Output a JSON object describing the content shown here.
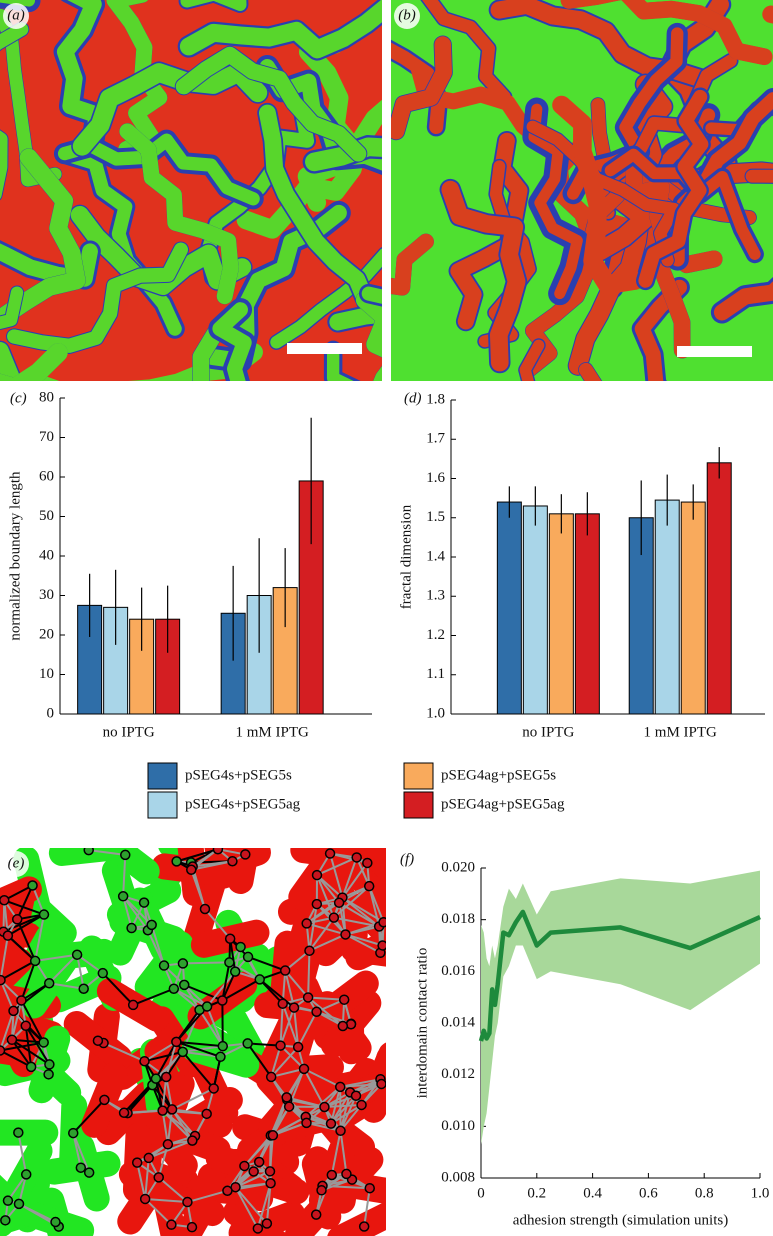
{
  "image_panels": [
    {
      "label": "(a)"
    },
    {
      "label": "(b)"
    },
    {
      "label": "(e)"
    }
  ],
  "chart_data": [
    {
      "type": "bar",
      "panel_label": "(c)",
      "ylabel": "normalized boundary length",
      "categories": [
        "no IPTG",
        "1 mM IPTG"
      ],
      "ylim": [
        0,
        80
      ],
      "yticks": [
        0,
        10,
        20,
        30,
        40,
        50,
        60,
        70,
        80
      ],
      "series": [
        {
          "name": "pSEG4s+pSEG5s",
          "color": "#2f6ea8",
          "values": [
            27.5,
            25.5
          ],
          "errors": [
            8,
            12
          ]
        },
        {
          "name": "pSEG4s+pSEG5ag",
          "color": "#a9d5e8",
          "values": [
            27,
            30
          ],
          "errors": [
            9.5,
            14.5
          ]
        },
        {
          "name": "pSEG4ag+pSEG5s",
          "color": "#f9aa5c",
          "values": [
            24,
            32
          ],
          "errors": [
            8,
            10
          ]
        },
        {
          "name": "pSEG4ag+pSEG5ag",
          "color": "#d41e22",
          "values": [
            24,
            59
          ],
          "errors": [
            8.5,
            16
          ]
        }
      ]
    },
    {
      "type": "bar",
      "panel_label": "(d)",
      "ylabel": "fractal dimension",
      "categories": [
        "no IPTG",
        "1 mM IPTG"
      ],
      "ylim": [
        1,
        1.8
      ],
      "yticks": [
        {
          "value": 1,
          "label": "1.0"
        },
        1.1,
        1.2,
        1.3,
        1.4,
        1.5,
        1.6,
        1.7,
        1.8
      ],
      "series": [
        {
          "color": "#2f6ea8",
          "values": [
            1.54,
            1.5
          ],
          "errors": [
            0.04,
            0.095
          ]
        },
        {
          "color": "#a9d5e8",
          "values": [
            1.53,
            1.545
          ],
          "errors": [
            0.05,
            0.065
          ]
        },
        {
          "color": "#f9aa5c",
          "values": [
            1.51,
            1.54
          ],
          "errors": [
            0.05,
            0.045
          ]
        },
        {
          "color": "#d41e22",
          "values": [
            1.51,
            1.64
          ],
          "errors": [
            0.055,
            0.04
          ]
        }
      ]
    },
    {
      "type": "line",
      "panel_label": "(f)",
      "xlabel": "adhesion strength (simulation units)",
      "ylabel": "interdomain contact ratio",
      "x": [
        0,
        0.01,
        0.02,
        0.03,
        0.04,
        0.05,
        0.06,
        0.08,
        0.1,
        0.125,
        0.15,
        0.2,
        0.25,
        0.5,
        0.75,
        1.0
      ],
      "xlim": [
        0,
        1
      ],
      "xticks": [
        0,
        0.2,
        0.4,
        0.6,
        0.8,
        {
          "value": 1,
          "label": "1.0"
        }
      ],
      "ylim": [
        0.008,
        0.02
      ],
      "yticks": [
        0.008,
        {
          "value": 0.01,
          "label": "0.010"
        },
        0.012,
        0.014,
        0.016,
        0.018,
        {
          "value": 0.02,
          "label": "0.020"
        }
      ],
      "series": [
        {
          "color": "#1e8a3c",
          "band_color": "#a8d89a",
          "values": [
            0.0133,
            0.0137,
            0.0134,
            0.0136,
            0.0153,
            0.0147,
            0.0155,
            0.0175,
            0.0174,
            0.0179,
            0.0183,
            0.017,
            0.0175,
            0.0177,
            0.0169,
            0.0181
          ],
          "lower": [
            0.0093,
            0.01,
            0.0105,
            0.0115,
            0.0125,
            0.0135,
            0.014,
            0.0158,
            0.0162,
            0.017,
            0.017,
            0.0157,
            0.016,
            0.0155,
            0.0145,
            0.0163
          ],
          "upper": [
            0.0178,
            0.0175,
            0.0165,
            0.0162,
            0.017,
            0.0165,
            0.017,
            0.0185,
            0.0192,
            0.0188,
            0.0194,
            0.0182,
            0.0191,
            0.0196,
            0.0194,
            0.0199
          ]
        }
      ]
    }
  ]
}
